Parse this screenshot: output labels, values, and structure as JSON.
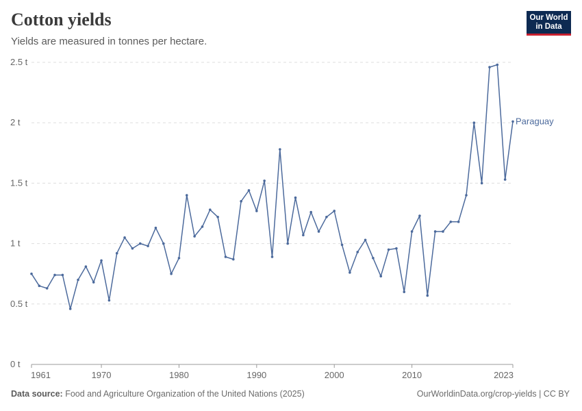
{
  "header": {
    "title": "Cotton yields",
    "subtitle": "Yields are measured in tonnes per hectare."
  },
  "logo": {
    "line1": "Our World",
    "line2": "in Data"
  },
  "footer": {
    "source_label": "Data source:",
    "source_text": "Food and Agriculture Organization of the United Nations (2025)",
    "url_license": "OurWorldinData.org/crop-yields | CC BY"
  },
  "colors": {
    "series": "#4c6a9c",
    "grid": "#dddddd",
    "axis": "#999999"
  },
  "chart_data": {
    "type": "line",
    "title": "Cotton yields",
    "subtitle": "Yields are measured in tonnes per hectare.",
    "xlim": [
      1961,
      2023
    ],
    "ylim": [
      0,
      2.5
    ],
    "x_ticks": [
      1961,
      1970,
      1980,
      1990,
      2000,
      2010,
      2023
    ],
    "y_ticks": [
      {
        "value": 0,
        "label": "0 t"
      },
      {
        "value": 0.5,
        "label": "0.5 t"
      },
      {
        "value": 1,
        "label": "1 t"
      },
      {
        "value": 1.5,
        "label": "1.5 t"
      },
      {
        "value": 2,
        "label": "2 t"
      },
      {
        "value": 2.5,
        "label": "2.5 t"
      }
    ],
    "grid": "horizontal dashed",
    "series": [
      {
        "name": "Paraguay",
        "color": "#4c6a9c",
        "x": [
          1961,
          1962,
          1963,
          1964,
          1965,
          1966,
          1967,
          1968,
          1969,
          1970,
          1971,
          1972,
          1973,
          1974,
          1975,
          1976,
          1977,
          1978,
          1979,
          1980,
          1981,
          1982,
          1983,
          1984,
          1985,
          1986,
          1987,
          1988,
          1989,
          1990,
          1991,
          1992,
          1993,
          1994,
          1995,
          1996,
          1997,
          1998,
          1999,
          2000,
          2001,
          2002,
          2003,
          2004,
          2005,
          2006,
          2007,
          2008,
          2009,
          2010,
          2011,
          2012,
          2013,
          2014,
          2015,
          2016,
          2017,
          2018,
          2019,
          2020,
          2021,
          2022,
          2023
        ],
        "values": [
          0.75,
          0.65,
          0.63,
          0.74,
          0.74,
          0.46,
          0.7,
          0.81,
          0.68,
          0.86,
          0.53,
          0.92,
          1.05,
          0.96,
          1.0,
          0.98,
          1.13,
          1.0,
          0.75,
          0.88,
          1.4,
          1.06,
          1.14,
          1.28,
          1.22,
          0.89,
          0.87,
          1.35,
          1.44,
          1.27,
          1.52,
          0.89,
          1.78,
          1.0,
          1.38,
          1.07,
          1.26,
          1.1,
          1.22,
          1.27,
          0.99,
          0.76,
          0.93,
          1.03,
          0.88,
          0.73,
          0.95,
          0.96,
          0.6,
          1.1,
          1.23,
          0.57,
          1.1,
          1.1,
          1.18,
          1.18,
          1.4,
          2.0,
          1.5,
          2.46,
          2.48,
          1.53,
          2.01
        ]
      }
    ]
  }
}
